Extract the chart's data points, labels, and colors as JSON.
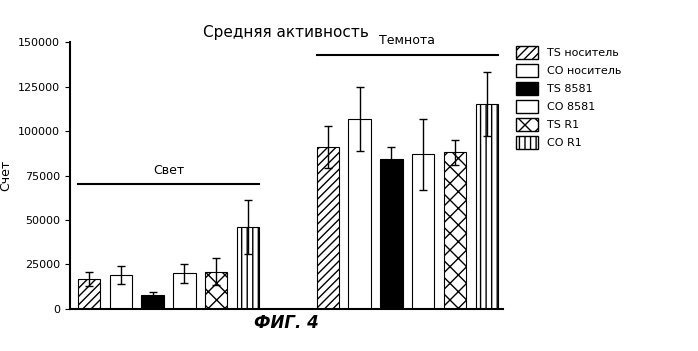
{
  "title": "Средняя активность",
  "xlabel": "ФИГ. 4",
  "ylabel": "Счет",
  "ylim": [
    0,
    150000
  ],
  "yticks": [
    0,
    25000,
    50000,
    75000,
    100000,
    125000,
    150000
  ],
  "label_svet": "Свет",
  "label_temnota": "Темнота",
  "categories": [
    "TS носитель",
    "CO носитель",
    "TS 8581",
    "CO 8581",
    "TS R1",
    "CO R1"
  ],
  "bar_values_light": [
    17000,
    19000,
    8000,
    20000,
    21000,
    46000
  ],
  "bar_errors_light": [
    4000,
    5000,
    1500,
    5500,
    7500,
    15000
  ],
  "bar_values_dark": [
    91000,
    107000,
    84000,
    87000,
    88000,
    115000
  ],
  "bar_errors_dark": [
    12000,
    18000,
    7000,
    20000,
    7000,
    18000
  ],
  "background_color": "#ffffff",
  "bar_edge_color": "#000000",
  "error_color": "#000000",
  "title_fontsize": 11,
  "axis_fontsize": 9,
  "tick_fontsize": 8,
  "xlabel_fontsize": 12,
  "legend_fontsize": 8
}
